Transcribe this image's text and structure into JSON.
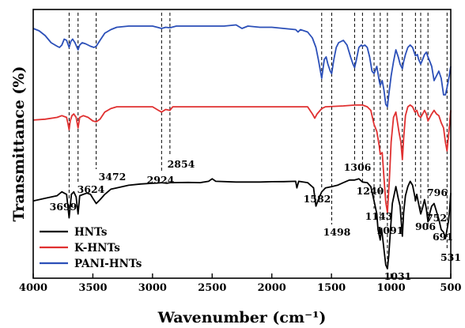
{
  "chart_data": {
    "type": "line",
    "xlabel": "Wavenumber (cm⁻¹)",
    "ylabel": "Transmittance (%)",
    "xlim": [
      4000,
      500
    ],
    "x_reversed": true,
    "x_ticks": [
      4000,
      3500,
      3000,
      2500,
      2000,
      1500,
      1000,
      500
    ],
    "y_ticks_shown": false,
    "grid": false,
    "legend_position": "bottom-left",
    "colors": {
      "HNTs": "#000000",
      "K-HNTs": "#e03030",
      "PANI-HNTs": "#2b4fb8"
    },
    "series": [
      {
        "name": "HNTs",
        "color": "#000000",
        "points": [
          [
            4000,
            0.52
          ],
          [
            3900,
            0.54
          ],
          [
            3800,
            0.56
          ],
          [
            3760,
            0.59
          ],
          [
            3720,
            0.57
          ],
          [
            3699,
            0.39
          ],
          [
            3680,
            0.57
          ],
          [
            3660,
            0.59
          ],
          [
            3640,
            0.55
          ],
          [
            3624,
            0.42
          ],
          [
            3610,
            0.56
          ],
          [
            3580,
            0.57
          ],
          [
            3550,
            0.58
          ],
          [
            3520,
            0.57
          ],
          [
            3500,
            0.54
          ],
          [
            3472,
            0.5
          ],
          [
            3440,
            0.53
          ],
          [
            3400,
            0.57
          ],
          [
            3350,
            0.61
          ],
          [
            3300,
            0.62
          ],
          [
            3200,
            0.64
          ],
          [
            3100,
            0.65
          ],
          [
            3000,
            0.655
          ],
          [
            2960,
            0.657
          ],
          [
            2924,
            0.66
          ],
          [
            2880,
            0.655
          ],
          [
            2854,
            0.66
          ],
          [
            2700,
            0.662
          ],
          [
            2600,
            0.66
          ],
          [
            2530,
            0.67
          ],
          [
            2500,
            0.69
          ],
          [
            2470,
            0.67
          ],
          [
            2300,
            0.665
          ],
          [
            2100,
            0.665
          ],
          [
            2000,
            0.667
          ],
          [
            1900,
            0.668
          ],
          [
            1800,
            0.67
          ],
          [
            1790,
            0.62
          ],
          [
            1775,
            0.67
          ],
          [
            1700,
            0.66
          ],
          [
            1650,
            0.62
          ],
          [
            1630,
            0.48
          ],
          [
            1610,
            0.53
          ],
          [
            1582,
            0.59
          ],
          [
            1550,
            0.62
          ],
          [
            1498,
            0.63
          ],
          [
            1450,
            0.64
          ],
          [
            1400,
            0.66
          ],
          [
            1350,
            0.68
          ],
          [
            1306,
            0.68
          ],
          [
            1270,
            0.69
          ],
          [
            1240,
            0.665
          ],
          [
            1200,
            0.66
          ],
          [
            1170,
            0.63
          ],
          [
            1143,
            0.52
          ],
          [
            1120,
            0.42
          ],
          [
            1110,
            0.3
          ],
          [
            1091,
            0.22
          ],
          [
            1080,
            0.31
          ],
          [
            1060,
            0.15
          ],
          [
            1045,
            0.03
          ],
          [
            1031,
            0.0
          ],
          [
            1020,
            0.1
          ],
          [
            1005,
            0.3
          ],
          [
            990,
            0.5
          ],
          [
            960,
            0.63
          ],
          [
            940,
            0.54
          ],
          [
            925,
            0.48
          ],
          [
            915,
            0.36
          ],
          [
            906,
            0.25
          ],
          [
            895,
            0.43
          ],
          [
            880,
            0.56
          ],
          [
            860,
            0.63
          ],
          [
            840,
            0.67
          ],
          [
            820,
            0.64
          ],
          [
            800,
            0.55
          ],
          [
            796,
            0.52
          ],
          [
            785,
            0.57
          ],
          [
            770,
            0.5
          ],
          [
            752,
            0.42
          ],
          [
            735,
            0.47
          ],
          [
            720,
            0.53
          ],
          [
            705,
            0.46
          ],
          [
            691,
            0.36
          ],
          [
            675,
            0.43
          ],
          [
            660,
            0.48
          ],
          [
            640,
            0.5
          ],
          [
            620,
            0.44
          ],
          [
            600,
            0.38
          ],
          [
            580,
            0.3
          ],
          [
            560,
            0.28
          ],
          [
            545,
            0.23
          ],
          [
            531,
            0.3
          ],
          [
            520,
            0.36
          ],
          [
            510,
            0.45
          ],
          [
            500,
            0.58
          ]
        ]
      },
      {
        "name": "K-HNTs",
        "color": "#e03030",
        "points": [
          [
            4000,
            0.745
          ],
          [
            3900,
            0.75
          ],
          [
            3800,
            0.76
          ],
          [
            3760,
            0.77
          ],
          [
            3720,
            0.76
          ],
          [
            3710,
            0.73
          ],
          [
            3699,
            0.69
          ],
          [
            3690,
            0.74
          ],
          [
            3675,
            0.77
          ],
          [
            3660,
            0.78
          ],
          [
            3640,
            0.76
          ],
          [
            3624,
            0.7
          ],
          [
            3610,
            0.76
          ],
          [
            3580,
            0.77
          ],
          [
            3540,
            0.76
          ],
          [
            3500,
            0.74
          ],
          [
            3472,
            0.735
          ],
          [
            3440,
            0.75
          ],
          [
            3400,
            0.79
          ],
          [
            3350,
            0.81
          ],
          [
            3300,
            0.82
          ],
          [
            3200,
            0.82
          ],
          [
            3100,
            0.82
          ],
          [
            3000,
            0.82
          ],
          [
            2950,
            0.8
          ],
          [
            2924,
            0.79
          ],
          [
            2890,
            0.805
          ],
          [
            2854,
            0.8
          ],
          [
            2830,
            0.82
          ],
          [
            2700,
            0.82
          ],
          [
            2500,
            0.82
          ],
          [
            2300,
            0.82
          ],
          [
            2000,
            0.82
          ],
          [
            1800,
            0.82
          ],
          [
            1700,
            0.82
          ],
          [
            1660,
            0.78
          ],
          [
            1640,
            0.755
          ],
          [
            1620,
            0.78
          ],
          [
            1582,
            0.81
          ],
          [
            1550,
            0.82
          ],
          [
            1400,
            0.825
          ],
          [
            1300,
            0.83
          ],
          [
            1240,
            0.83
          ],
          [
            1200,
            0.82
          ],
          [
            1170,
            0.8
          ],
          [
            1143,
            0.72
          ],
          [
            1120,
            0.68
          ],
          [
            1100,
            0.6
          ],
          [
            1091,
            0.55
          ],
          [
            1075,
            0.56
          ],
          [
            1060,
            0.42
          ],
          [
            1045,
            0.28
          ],
          [
            1031,
            0.22
          ],
          [
            1015,
            0.4
          ],
          [
            1000,
            0.62
          ],
          [
            980,
            0.76
          ],
          [
            960,
            0.79
          ],
          [
            935,
            0.68
          ],
          [
            918,
            0.62
          ],
          [
            906,
            0.52
          ],
          [
            895,
            0.64
          ],
          [
            880,
            0.77
          ],
          [
            860,
            0.82
          ],
          [
            840,
            0.83
          ],
          [
            820,
            0.82
          ],
          [
            800,
            0.79
          ],
          [
            785,
            0.8
          ],
          [
            770,
            0.77
          ],
          [
            752,
            0.76
          ],
          [
            735,
            0.78
          ],
          [
            720,
            0.8
          ],
          [
            705,
            0.78
          ],
          [
            691,
            0.74
          ],
          [
            675,
            0.76
          ],
          [
            660,
            0.78
          ],
          [
            640,
            0.8
          ],
          [
            620,
            0.78
          ],
          [
            600,
            0.77
          ],
          [
            580,
            0.73
          ],
          [
            560,
            0.7
          ],
          [
            545,
            0.62
          ],
          [
            531,
            0.57
          ],
          [
            520,
            0.65
          ],
          [
            510,
            0.72
          ],
          [
            500,
            0.8
          ]
        ]
      },
      {
        "name": "PANI-HNTs",
        "color": "#2b4fb8",
        "points": [
          [
            4000,
            0.98
          ],
          [
            3950,
            0.97
          ],
          [
            3900,
            0.95
          ],
          [
            3850,
            0.92
          ],
          [
            3800,
            0.905
          ],
          [
            3780,
            0.9
          ],
          [
            3760,
            0.91
          ],
          [
            3740,
            0.935
          ],
          [
            3720,
            0.93
          ],
          [
            3699,
            0.9
          ],
          [
            3685,
            0.925
          ],
          [
            3670,
            0.935
          ],
          [
            3650,
            0.92
          ],
          [
            3624,
            0.89
          ],
          [
            3610,
            0.91
          ],
          [
            3590,
            0.92
          ],
          [
            3560,
            0.915
          ],
          [
            3520,
            0.905
          ],
          [
            3490,
            0.9
          ],
          [
            3472,
            0.905
          ],
          [
            3440,
            0.93
          ],
          [
            3400,
            0.96
          ],
          [
            3350,
            0.975
          ],
          [
            3300,
            0.985
          ],
          [
            3200,
            0.99
          ],
          [
            3100,
            0.99
          ],
          [
            3000,
            0.99
          ],
          [
            2960,
            0.985
          ],
          [
            2924,
            0.98
          ],
          [
            2890,
            0.985
          ],
          [
            2854,
            0.983
          ],
          [
            2800,
            0.99
          ],
          [
            2600,
            0.99
          ],
          [
            2400,
            0.99
          ],
          [
            2300,
            0.995
          ],
          [
            2250,
            0.98
          ],
          [
            2200,
            0.99
          ],
          [
            2100,
            0.985
          ],
          [
            2000,
            0.985
          ],
          [
            1900,
            0.98
          ],
          [
            1800,
            0.975
          ],
          [
            1780,
            0.965
          ],
          [
            1760,
            0.975
          ],
          [
            1700,
            0.965
          ],
          [
            1660,
            0.94
          ],
          [
            1630,
            0.9
          ],
          [
            1610,
            0.85
          ],
          [
            1582,
            0.77
          ],
          [
            1560,
            0.85
          ],
          [
            1545,
            0.86
          ],
          [
            1530,
            0.83
          ],
          [
            1510,
            0.8
          ],
          [
            1498,
            0.79
          ],
          [
            1480,
            0.85
          ],
          [
            1460,
            0.9
          ],
          [
            1440,
            0.92
          ],
          [
            1400,
            0.93
          ],
          [
            1370,
            0.91
          ],
          [
            1340,
            0.86
          ],
          [
            1320,
            0.83
          ],
          [
            1306,
            0.815
          ],
          [
            1290,
            0.85
          ],
          [
            1270,
            0.9
          ],
          [
            1250,
            0.91
          ],
          [
            1240,
            0.905
          ],
          [
            1220,
            0.91
          ],
          [
            1200,
            0.9
          ],
          [
            1180,
            0.86
          ],
          [
            1160,
            0.8
          ],
          [
            1143,
            0.79
          ],
          [
            1120,
            0.82
          ],
          [
            1100,
            0.76
          ],
          [
            1091,
            0.74
          ],
          [
            1075,
            0.76
          ],
          [
            1060,
            0.72
          ],
          [
            1045,
            0.66
          ],
          [
            1031,
            0.65
          ],
          [
            1020,
            0.7
          ],
          [
            1000,
            0.78
          ],
          [
            980,
            0.84
          ],
          [
            960,
            0.89
          ],
          [
            940,
            0.86
          ],
          [
            925,
            0.83
          ],
          [
            906,
            0.81
          ],
          [
            895,
            0.84
          ],
          [
            880,
            0.87
          ],
          [
            860,
            0.9
          ],
          [
            840,
            0.91
          ],
          [
            820,
            0.9
          ],
          [
            800,
            0.87
          ],
          [
            796,
            0.865
          ],
          [
            780,
            0.87
          ],
          [
            770,
            0.85
          ],
          [
            752,
            0.83
          ],
          [
            735,
            0.85
          ],
          [
            720,
            0.87
          ],
          [
            705,
            0.88
          ],
          [
            691,
            0.86
          ],
          [
            675,
            0.84
          ],
          [
            660,
            0.82
          ],
          [
            640,
            0.76
          ],
          [
            620,
            0.78
          ],
          [
            600,
            0.8
          ],
          [
            580,
            0.77
          ],
          [
            560,
            0.7
          ],
          [
            545,
            0.7
          ],
          [
            531,
            0.73
          ],
          [
            520,
            0.76
          ],
          [
            510,
            0.79
          ],
          [
            500,
            0.82
          ]
        ]
      }
    ],
    "annotations": [
      {
        "label": "3699",
        "x": 3699,
        "label_side": "below"
      },
      {
        "label": "3624",
        "x": 3624,
        "label_side": "below"
      },
      {
        "label": "3472",
        "x": 3472,
        "label_side": "below"
      },
      {
        "label": "2924",
        "x": 2924,
        "label_side": "below"
      },
      {
        "label": "2854",
        "x": 2854,
        "label_side": "below"
      },
      {
        "label": "1582",
        "x": 1582,
        "label_side": "below"
      },
      {
        "label": "1498",
        "x": 1498,
        "label_side": "below"
      },
      {
        "label": "1306",
        "x": 1306,
        "label_side": "below"
      },
      {
        "label": "1240",
        "x": 1240,
        "label_side": "below"
      },
      {
        "label": "1143",
        "x": 1143,
        "label_side": "below"
      },
      {
        "label": "1091",
        "x": 1091,
        "label_side": "below"
      },
      {
        "label": "1031",
        "x": 1031,
        "label_side": "below"
      },
      {
        "label": "906",
        "x": 906,
        "label_side": "below"
      },
      {
        "label": "796",
        "x": 796,
        "label_side": "below"
      },
      {
        "label": "752",
        "x": 752,
        "label_side": "below"
      },
      {
        "label": "691",
        "x": 691,
        "label_side": "below"
      },
      {
        "label": "531",
        "x": 531,
        "label_side": "below"
      }
    ]
  }
}
